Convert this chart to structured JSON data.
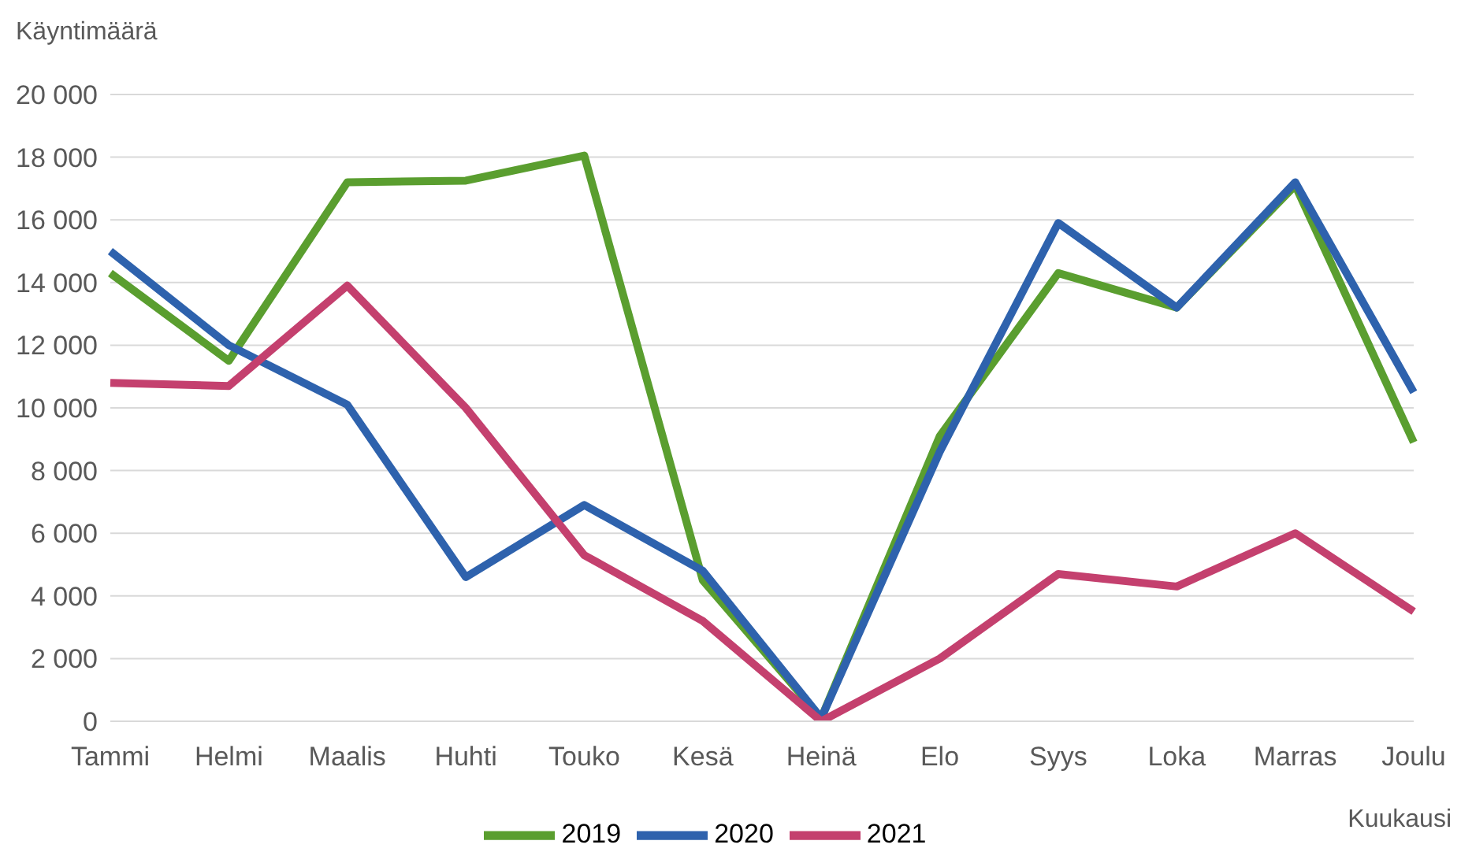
{
  "chart_data": {
    "type": "line",
    "ylabel": "Käyntimäärä",
    "xlabel": "Kuukausi",
    "categories": [
      "Tammi",
      "Helmi",
      "Maalis",
      "Huhti",
      "Touko",
      "Kesä",
      "Heinä",
      "Elo",
      "Syys",
      "Loka",
      "Marras",
      "Joulu"
    ],
    "series": [
      {
        "name": "2019",
        "color": "#5a9e2f",
        "values": [
          14300,
          11500,
          17200,
          17250,
          18050,
          4500,
          100,
          9100,
          14300,
          13200,
          17100,
          8900
        ]
      },
      {
        "name": "2020",
        "color": "#2e62ad",
        "values": [
          15000,
          12000,
          10100,
          4600,
          6900,
          4800,
          100,
          8600,
          15900,
          13200,
          17200,
          10500
        ]
      },
      {
        "name": "2021",
        "color": "#c4406e",
        "values": [
          10800,
          10700,
          13900,
          10000,
          5300,
          3200,
          0,
          2000,
          4700,
          4300,
          6000,
          3500
        ]
      }
    ],
    "ylim": [
      0,
      20000
    ],
    "yticks": [
      {
        "value": 0,
        "label": "0"
      },
      {
        "value": 2000,
        "label": "2 000"
      },
      {
        "value": 4000,
        "label": "4 000"
      },
      {
        "value": 6000,
        "label": "6 000"
      },
      {
        "value": 8000,
        "label": "8 000"
      },
      {
        "value": 10000,
        "label": "10 000"
      },
      {
        "value": 12000,
        "label": "12 000"
      },
      {
        "value": 14000,
        "label": "14 000"
      },
      {
        "value": 16000,
        "label": "16 000"
      },
      {
        "value": 18000,
        "label": "18 000"
      },
      {
        "value": 20000,
        "label": "20 000"
      }
    ],
    "grid": "y",
    "legend": "bottom",
    "marker": "none",
    "line_style": "solid"
  }
}
